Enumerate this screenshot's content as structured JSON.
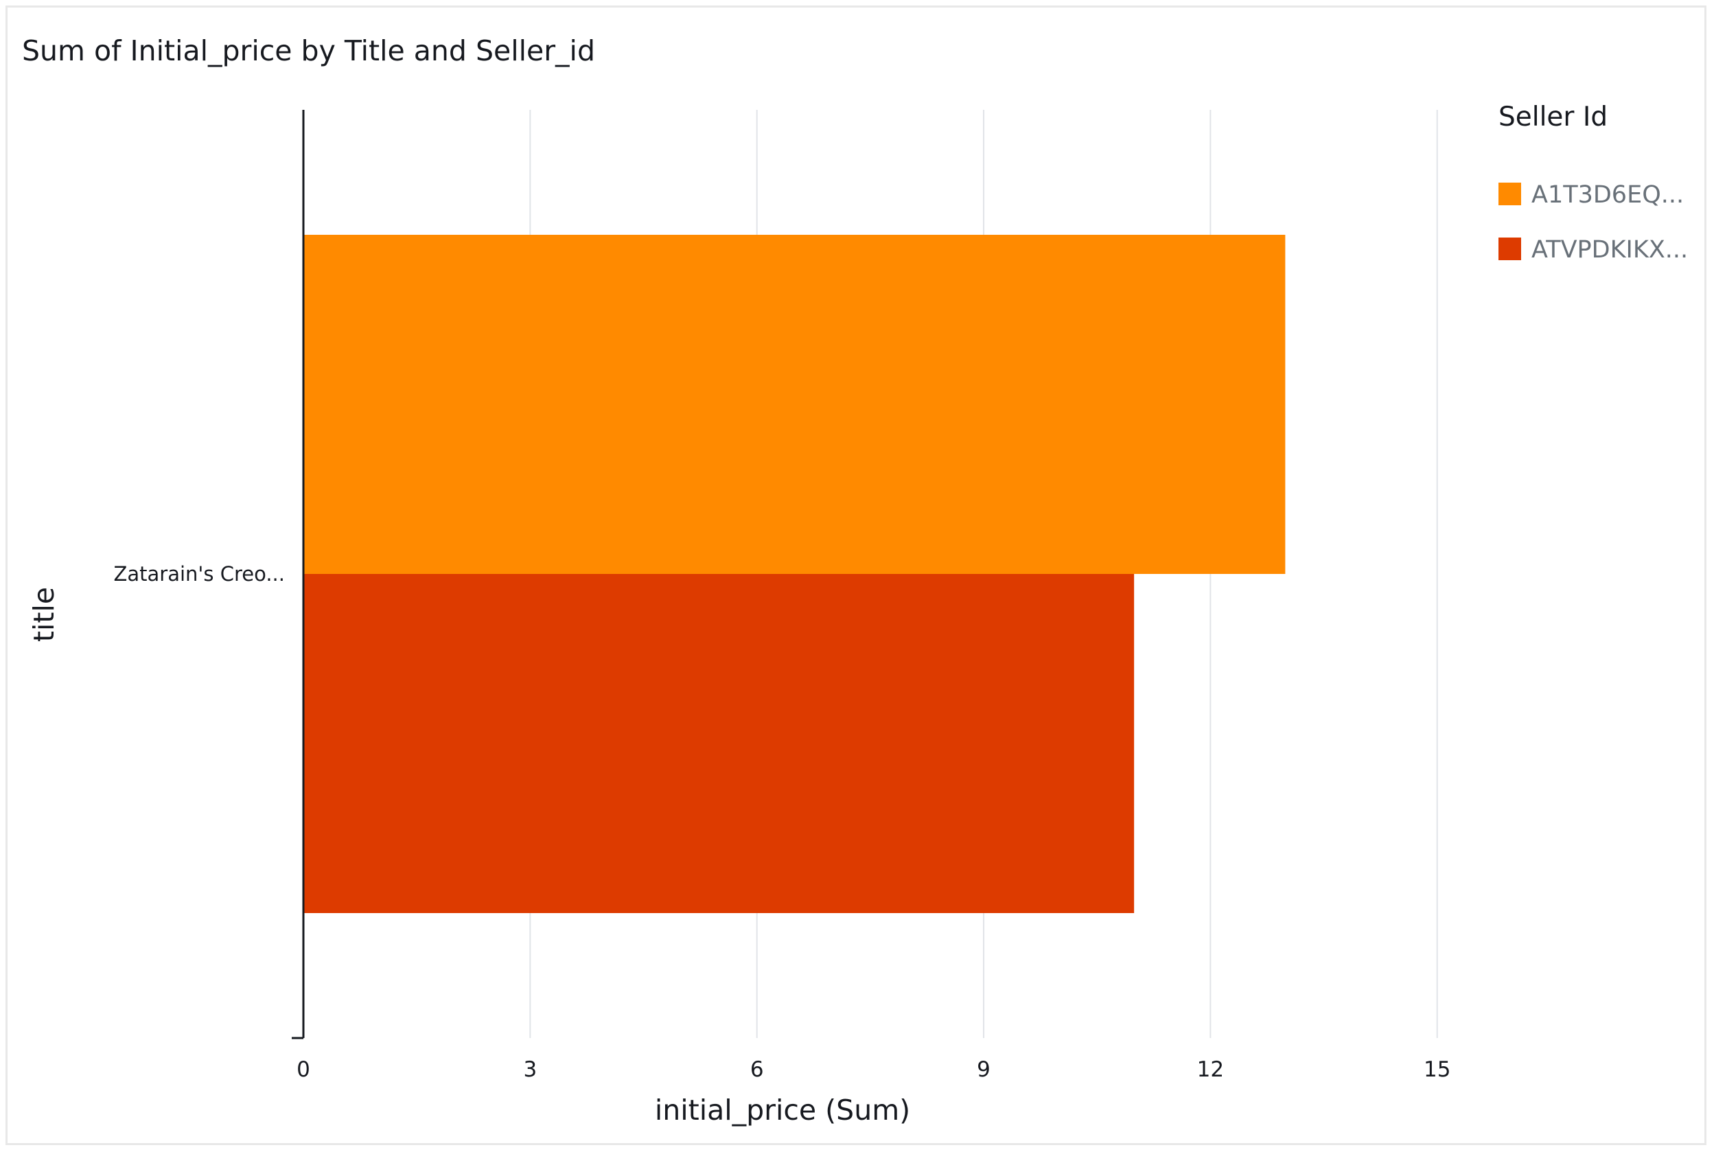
{
  "chart_data": {
    "type": "bar",
    "orientation": "horizontal",
    "title": "Sum of Initial_price by Title and Seller_id",
    "xlabel": "initial_price (Sum)",
    "ylabel": "title",
    "xlim": [
      0,
      17.6
    ],
    "xticks": [
      0,
      3,
      6,
      9,
      12,
      15
    ],
    "grid": true,
    "categories": [
      "Zatarain's Creo..."
    ],
    "legend": {
      "title": "Seller Id",
      "placement": "right"
    },
    "series": [
      {
        "name": "A1T3D6EQ...",
        "values": [
          12.99
        ],
        "color": "#ff8a00"
      },
      {
        "name": "ATVPDKIKX...",
        "values": [
          10.99
        ],
        "color": "#dd3b00"
      }
    ]
  }
}
